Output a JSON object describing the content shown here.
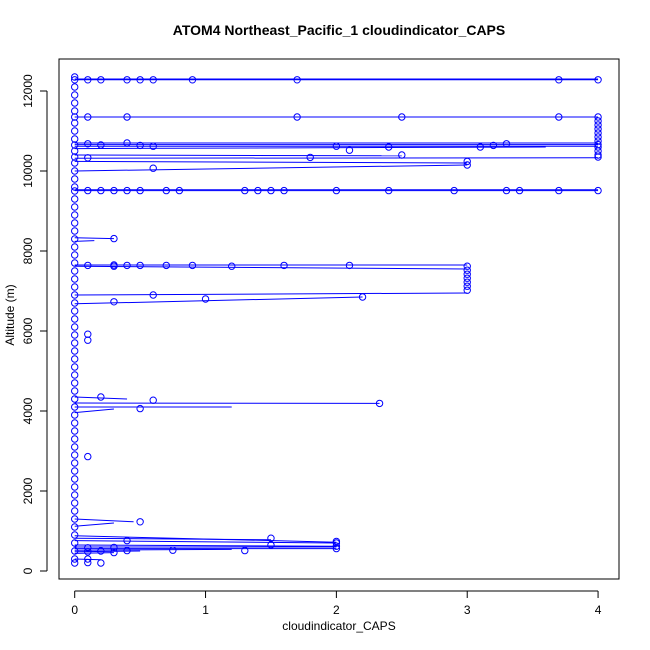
{
  "chart_data": {
    "type": "scatter",
    "title": "ATOM4 Northeast_Pacific_1 cloudindicator_CAPS",
    "xlabel": "cloudindicator_CAPS",
    "ylabel": "Altitude (m)",
    "xlim": [
      -0.12,
      4.16
    ],
    "ylim": [
      -200,
      12800
    ],
    "x_ticks": [
      0,
      1,
      2,
      3,
      4
    ],
    "x_tick_labels": [
      "0",
      "1",
      "2",
      "3",
      "4"
    ],
    "y_ticks": [
      0,
      2000,
      4000,
      6000,
      8000,
      10000,
      12000
    ],
    "y_tick_labels": [
      "0",
      "2000",
      "4000",
      "6000",
      "8000",
      "10000",
      "12000"
    ],
    "series_color": "#0000ff",
    "marker": "open-circle",
    "grid": false,
    "legend": "none",
    "segments": [
      [
        [
          0,
          12280
        ],
        [
          4,
          12280
        ]
      ],
      [
        [
          0,
          12300
        ],
        [
          4,
          12300
        ]
      ],
      [
        [
          0,
          11350
        ],
        [
          4,
          11350
        ]
      ],
      [
        [
          0,
          10700
        ],
        [
          4,
          10700
        ]
      ],
      [
        [
          0,
          10660
        ],
        [
          4,
          10660
        ]
      ],
      [
        [
          0,
          10620
        ],
        [
          4,
          10620
        ]
      ],
      [
        [
          0,
          10560
        ],
        [
          3.6,
          10600
        ]
      ],
      [
        [
          0,
          10400
        ],
        [
          2.5,
          10380
        ]
      ],
      [
        [
          0,
          10320
        ],
        [
          4,
          10330
        ]
      ],
      [
        [
          0,
          10240
        ],
        [
          3,
          10200
        ]
      ],
      [
        [
          0,
          10000
        ],
        [
          3,
          10150
        ]
      ],
      [
        [
          0,
          9510
        ],
        [
          4,
          9510
        ]
      ],
      [
        [
          0,
          9530
        ],
        [
          4,
          9530
        ]
      ],
      [
        [
          0,
          8330
        ],
        [
          0.3,
          8310
        ]
      ],
      [
        [
          0,
          8240
        ],
        [
          0.15,
          8260
        ]
      ],
      [
        [
          0,
          7650
        ],
        [
          3,
          7650
        ]
      ],
      [
        [
          0,
          7620
        ],
        [
          3,
          7550
        ]
      ],
      [
        [
          0,
          6900
        ],
        [
          3,
          6950
        ]
      ],
      [
        [
          0,
          6680
        ],
        [
          2.2,
          6850
        ]
      ],
      [
        [
          0,
          4350
        ],
        [
          0.4,
          4300
        ]
      ],
      [
        [
          0,
          4200
        ],
        [
          2.33,
          4190
        ]
      ],
      [
        [
          0,
          4100
        ],
        [
          1.2,
          4100
        ]
      ],
      [
        [
          0,
          3960
        ],
        [
          0.3,
          4050
        ]
      ],
      [
        [
          0,
          1300
        ],
        [
          0.45,
          1230
        ]
      ],
      [
        [
          0,
          1120
        ],
        [
          0.3,
          1200
        ]
      ],
      [
        [
          0,
          880
        ],
        [
          2,
          720
        ]
      ],
      [
        [
          0,
          820
        ],
        [
          1.5,
          780
        ]
      ],
      [
        [
          0,
          760
        ],
        [
          2,
          700
        ]
      ],
      [
        [
          0,
          650
        ],
        [
          2,
          620
        ]
      ],
      [
        [
          0,
          600
        ],
        [
          2,
          600
        ]
      ],
      [
        [
          0,
          560
        ],
        [
          2,
          560
        ]
      ],
      [
        [
          0,
          520
        ],
        [
          1.2,
          540
        ]
      ],
      [
        [
          0,
          480
        ],
        [
          0.5,
          500
        ]
      ],
      [
        [
          0,
          440
        ],
        [
          0.3,
          460
        ]
      ],
      [
        [
          0,
          300
        ],
        [
          0.2,
          280
        ]
      ]
    ],
    "points": [
      {
        "x": 0,
        "y": 12350
      },
      {
        "x": 0,
        "y": 12280
      },
      {
        "x": 0,
        "y": 12100
      },
      {
        "x": 0,
        "y": 11900
      },
      {
        "x": 0,
        "y": 11700
      },
      {
        "x": 0,
        "y": 11500
      },
      {
        "x": 0,
        "y": 11350
      },
      {
        "x": 0,
        "y": 11200
      },
      {
        "x": 0,
        "y": 11000
      },
      {
        "x": 0,
        "y": 10800
      },
      {
        "x": 0,
        "y": 10650
      },
      {
        "x": 0,
        "y": 10500
      },
      {
        "x": 0,
        "y": 10350
      },
      {
        "x": 0,
        "y": 10200
      },
      {
        "x": 0,
        "y": 10000
      },
      {
        "x": 0,
        "y": 9800
      },
      {
        "x": 0,
        "y": 9600
      },
      {
        "x": 0,
        "y": 9500
      },
      {
        "x": 0,
        "y": 9300
      },
      {
        "x": 0,
        "y": 9100
      },
      {
        "x": 0,
        "y": 8900
      },
      {
        "x": 0,
        "y": 8700
      },
      {
        "x": 0,
        "y": 8500
      },
      {
        "x": 0,
        "y": 8300
      },
      {
        "x": 0,
        "y": 8100
      },
      {
        "x": 0,
        "y": 7900
      },
      {
        "x": 0,
        "y": 7700
      },
      {
        "x": 0,
        "y": 7500
      },
      {
        "x": 0,
        "y": 7300
      },
      {
        "x": 0,
        "y": 7100
      },
      {
        "x": 0,
        "y": 6900
      },
      {
        "x": 0,
        "y": 6700
      },
      {
        "x": 0,
        "y": 6500
      },
      {
        "x": 0,
        "y": 6300
      },
      {
        "x": 0,
        "y": 6100
      },
      {
        "x": 0,
        "y": 5900
      },
      {
        "x": 0,
        "y": 5700
      },
      {
        "x": 0,
        "y": 5500
      },
      {
        "x": 0,
        "y": 5300
      },
      {
        "x": 0,
        "y": 5100
      },
      {
        "x": 0,
        "y": 4900
      },
      {
        "x": 0,
        "y": 4700
      },
      {
        "x": 0,
        "y": 4500
      },
      {
        "x": 0,
        "y": 4300
      },
      {
        "x": 0,
        "y": 4100
      },
      {
        "x": 0,
        "y": 3900
      },
      {
        "x": 0,
        "y": 3700
      },
      {
        "x": 0,
        "y": 3500
      },
      {
        "x": 0,
        "y": 3300
      },
      {
        "x": 0,
        "y": 3100
      },
      {
        "x": 0,
        "y": 2900
      },
      {
        "x": 0,
        "y": 2700
      },
      {
        "x": 0,
        "y": 2500
      },
      {
        "x": 0,
        "y": 2300
      },
      {
        "x": 0,
        "y": 2100
      },
      {
        "x": 0,
        "y": 1900
      },
      {
        "x": 0,
        "y": 1700
      },
      {
        "x": 0,
        "y": 1500
      },
      {
        "x": 0,
        "y": 1300
      },
      {
        "x": 0,
        "y": 1100
      },
      {
        "x": 0,
        "y": 900
      },
      {
        "x": 0,
        "y": 700
      },
      {
        "x": 0,
        "y": 500
      },
      {
        "x": 0,
        "y": 300
      },
      {
        "x": 0,
        "y": 200
      },
      {
        "x": 0.1,
        "y": 12280
      },
      {
        "x": 0.2,
        "y": 12280
      },
      {
        "x": 0.4,
        "y": 12280
      },
      {
        "x": 0.5,
        "y": 12280
      },
      {
        "x": 0.6,
        "y": 12280
      },
      {
        "x": 0.9,
        "y": 12280
      },
      {
        "x": 1.7,
        "y": 12280
      },
      {
        "x": 3.7,
        "y": 12280
      },
      {
        "x": 4,
        "y": 12280
      },
      {
        "x": 0.1,
        "y": 11350
      },
      {
        "x": 0.4,
        "y": 11350
      },
      {
        "x": 1.7,
        "y": 11350
      },
      {
        "x": 2.5,
        "y": 11350
      },
      {
        "x": 3.7,
        "y": 11350
      },
      {
        "x": 4,
        "y": 11350
      },
      {
        "x": 4,
        "y": 11250
      },
      {
        "x": 4,
        "y": 11150
      },
      {
        "x": 4,
        "y": 11050
      },
      {
        "x": 4,
        "y": 10950
      },
      {
        "x": 4,
        "y": 10850
      },
      {
        "x": 4,
        "y": 10750
      },
      {
        "x": 0.1,
        "y": 10680
      },
      {
        "x": 0.2,
        "y": 10650
      },
      {
        "x": 0.4,
        "y": 10700
      },
      {
        "x": 0.5,
        "y": 10640
      },
      {
        "x": 0.6,
        "y": 10620
      },
      {
        "x": 2,
        "y": 10620
      },
      {
        "x": 2.4,
        "y": 10600
      },
      {
        "x": 3.1,
        "y": 10600
      },
      {
        "x": 3.2,
        "y": 10640
      },
      {
        "x": 3.3,
        "y": 10680
      },
      {
        "x": 4,
        "y": 10660
      },
      {
        "x": 4,
        "y": 10600
      },
      {
        "x": 4,
        "y": 10500
      },
      {
        "x": 4,
        "y": 10400
      },
      {
        "x": 4,
        "y": 10350
      },
      {
        "x": 0.1,
        "y": 10330
      },
      {
        "x": 1.8,
        "y": 10340
      },
      {
        "x": 2.1,
        "y": 10520
      },
      {
        "x": 2.5,
        "y": 10400
      },
      {
        "x": 3,
        "y": 10240
      },
      {
        "x": 3,
        "y": 10150
      },
      {
        "x": 0.6,
        "y": 10070
      },
      {
        "x": 0.1,
        "y": 9510
      },
      {
        "x": 0.2,
        "y": 9510
      },
      {
        "x": 0.3,
        "y": 9510
      },
      {
        "x": 0.4,
        "y": 9510
      },
      {
        "x": 0.5,
        "y": 9510
      },
      {
        "x": 0.7,
        "y": 9510
      },
      {
        "x": 0.8,
        "y": 9510
      },
      {
        "x": 1.3,
        "y": 9510
      },
      {
        "x": 1.4,
        "y": 9510
      },
      {
        "x": 1.5,
        "y": 9510
      },
      {
        "x": 1.6,
        "y": 9510
      },
      {
        "x": 2,
        "y": 9510
      },
      {
        "x": 2.4,
        "y": 9510
      },
      {
        "x": 2.9,
        "y": 9510
      },
      {
        "x": 3.3,
        "y": 9510
      },
      {
        "x": 3.4,
        "y": 9510
      },
      {
        "x": 3.7,
        "y": 9510
      },
      {
        "x": 4,
        "y": 9510
      },
      {
        "x": 0.3,
        "y": 8310
      },
      {
        "x": 0.1,
        "y": 7640
      },
      {
        "x": 0.3,
        "y": 7650
      },
      {
        "x": 0.3,
        "y": 7620
      },
      {
        "x": 0.4,
        "y": 7640
      },
      {
        "x": 0.5,
        "y": 7640
      },
      {
        "x": 0.7,
        "y": 7640
      },
      {
        "x": 0.9,
        "y": 7640
      },
      {
        "x": 1.2,
        "y": 7620
      },
      {
        "x": 1.6,
        "y": 7640
      },
      {
        "x": 2.1,
        "y": 7640
      },
      {
        "x": 3,
        "y": 7620
      },
      {
        "x": 3,
        "y": 7520
      },
      {
        "x": 3,
        "y": 7420
      },
      {
        "x": 3,
        "y": 7320
      },
      {
        "x": 3,
        "y": 7220
      },
      {
        "x": 3,
        "y": 7120
      },
      {
        "x": 3,
        "y": 7020
      },
      {
        "x": 0.6,
        "y": 6900
      },
      {
        "x": 1,
        "y": 6800
      },
      {
        "x": 2.2,
        "y": 6850
      },
      {
        "x": 0.3,
        "y": 6730
      },
      {
        "x": 0.1,
        "y": 5920
      },
      {
        "x": 0.1,
        "y": 5770
      },
      {
        "x": 0.2,
        "y": 4350
      },
      {
        "x": 0.6,
        "y": 4270
      },
      {
        "x": 2.33,
        "y": 4190
      },
      {
        "x": 0.5,
        "y": 4060
      },
      {
        "x": 0.1,
        "y": 2860
      },
      {
        "x": 0.5,
        "y": 1230
      },
      {
        "x": 1.5,
        "y": 820
      },
      {
        "x": 0.4,
        "y": 760
      },
      {
        "x": 2,
        "y": 740
      },
      {
        "x": 2,
        "y": 700
      },
      {
        "x": 1.5,
        "y": 650
      },
      {
        "x": 2,
        "y": 620
      },
      {
        "x": 0.3,
        "y": 590
      },
      {
        "x": 0.1,
        "y": 580
      },
      {
        "x": 2,
        "y": 560
      },
      {
        "x": 0.75,
        "y": 520
      },
      {
        "x": 1.3,
        "y": 510
      },
      {
        "x": 0.4,
        "y": 510
      },
      {
        "x": 0.2,
        "y": 500
      },
      {
        "x": 0.1,
        "y": 480
      },
      {
        "x": 0.3,
        "y": 460
      },
      {
        "x": 0.1,
        "y": 300
      },
      {
        "x": 0.2,
        "y": 200
      },
      {
        "x": 0.1,
        "y": 210
      }
    ]
  }
}
